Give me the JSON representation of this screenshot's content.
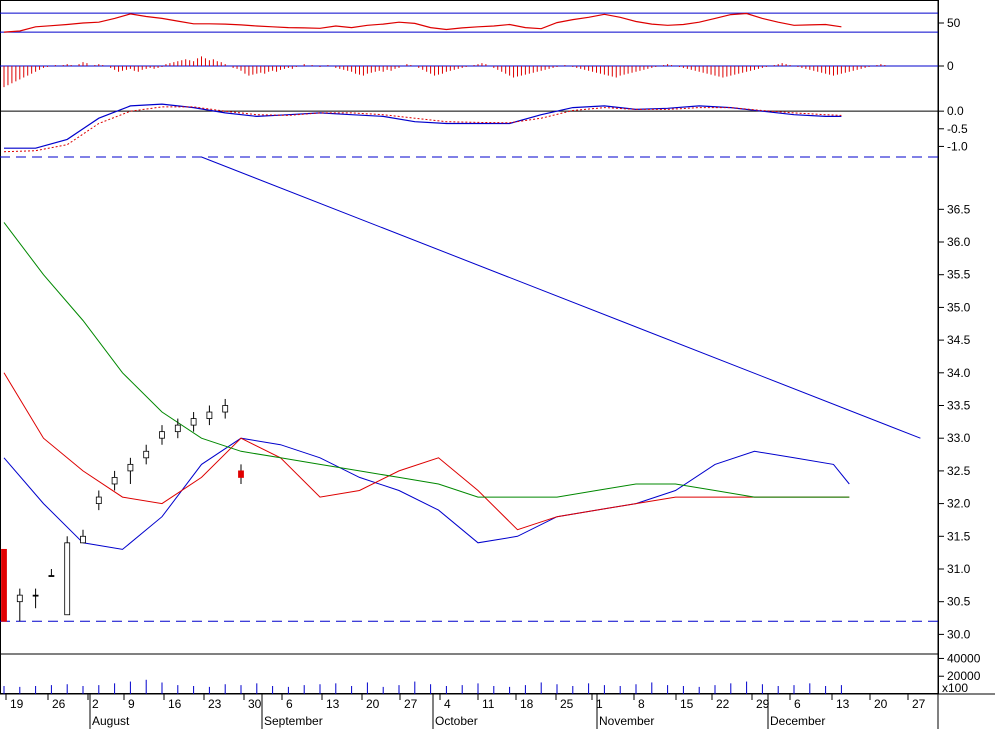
{
  "colors": {
    "background": "#ffffff",
    "frame": "#000000",
    "up_candle": "#ffffff",
    "down_candle": "#e00000",
    "doji_candle": "#000000",
    "ma_short": "#0000cc",
    "ma_mid": "#dd0000",
    "ma_long": "#008800",
    "trendline": "#0000cc",
    "guide": "#0000cc",
    "volume": "#0000cc",
    "histogram": "#dd0000",
    "osc_line": "#dd0000",
    "macd_line": "#0000cc",
    "signal_line": "#dd0000"
  },
  "chart_data": [
    {
      "type": "line",
      "panel": "oscillator",
      "ylim": [
        0,
        100
      ],
      "yticks": [
        50
      ],
      "guides": [
        76,
        26
      ],
      "x": [
        0,
        4,
        8,
        12,
        16,
        20,
        24,
        28,
        32,
        36,
        40,
        44,
        48,
        52,
        56,
        60,
        64,
        68,
        72,
        76,
        80,
        84,
        88,
        92,
        96,
        100,
        104,
        108,
        112,
        116,
        120,
        124,
        128,
        132,
        136,
        140,
        144,
        148,
        152,
        156,
        160,
        164,
        168,
        172,
        176,
        180,
        184,
        188,
        192,
        196,
        200,
        204,
        208,
        212
      ],
      "values": [
        26,
        29,
        40,
        43,
        46,
        50,
        52,
        62,
        74,
        67,
        62,
        55,
        48,
        48,
        47,
        45,
        42,
        40,
        38,
        37,
        36,
        42,
        38,
        44,
        47,
        52,
        49,
        38,
        33,
        37,
        40,
        42,
        46,
        38,
        35,
        51,
        59,
        65,
        73,
        65,
        54,
        47,
        44,
        46,
        52,
        62,
        72,
        75,
        62,
        52,
        44,
        45,
        46,
        40
      ]
    },
    {
      "type": "bar",
      "panel": "histogram",
      "ylim": [
        -0.25,
        0.25
      ],
      "yticks": [
        0
      ],
      "x": [
        0,
        1,
        2,
        3,
        4,
        5,
        6,
        7,
        8,
        9,
        10,
        11,
        12,
        13,
        14,
        15,
        16,
        17,
        18,
        19,
        20,
        21,
        22,
        23,
        24,
        25,
        26,
        27,
        28,
        29,
        30,
        31,
        32,
        33,
        34,
        35,
        36,
        37,
        38,
        39,
        40,
        41,
        42,
        43,
        44,
        45,
        46,
        47,
        48,
        49,
        50,
        51,
        52,
        53,
        54,
        55,
        56,
        57,
        58,
        59,
        60,
        61,
        62,
        63,
        64,
        65,
        66,
        67,
        68,
        69,
        70,
        71,
        72,
        73,
        74,
        75,
        76,
        77,
        78,
        79,
        80,
        81,
        82,
        83,
        84,
        85,
        86,
        87,
        88,
        89,
        90,
        91,
        92,
        93,
        94,
        95,
        96,
        97,
        98,
        99,
        100,
        101,
        102,
        103,
        104,
        105,
        106,
        107,
        108,
        109,
        110,
        111,
        112,
        113,
        114,
        115,
        116,
        117,
        118,
        119,
        120,
        121,
        122,
        123,
        124,
        125,
        126,
        127,
        128,
        129,
        130,
        131,
        132,
        133,
        134,
        135,
        136,
        137,
        138,
        139,
        140,
        141,
        142,
        143,
        144,
        145,
        146,
        147,
        148,
        149,
        150,
        151,
        152,
        153,
        154,
        155,
        156,
        157,
        158,
        159,
        160,
        161,
        162,
        163,
        164,
        165,
        166,
        167,
        168,
        169,
        170,
        171,
        172,
        173,
        174,
        175,
        176,
        177,
        178,
        179,
        180,
        181,
        182,
        183,
        184,
        185,
        186,
        187,
        188,
        189,
        190,
        191,
        192,
        193,
        194,
        195,
        196,
        197,
        198,
        199,
        200,
        201,
        202,
        203,
        204,
        205,
        206,
        207,
        208,
        209,
        210,
        211,
        212,
        213,
        214,
        215,
        216,
        217,
        218,
        219,
        220,
        221,
        222,
        223,
        224
      ],
      "values": [
        -0.22,
        -0.2,
        -0.18,
        -0.16,
        -0.14,
        -0.12,
        -0.1,
        -0.08,
        -0.06,
        -0.04,
        -0.02,
        -0.01,
        0,
        0.01,
        0,
        0.01,
        0.02,
        0.01,
        0,
        0.02,
        0.04,
        0.03,
        0,
        0.01,
        0.02,
        0.01,
        0,
        -0.02,
        -0.04,
        -0.06,
        -0.05,
        -0.04,
        -0.03,
        -0.05,
        -0.06,
        -0.04,
        -0.03,
        -0.02,
        -0.03,
        -0.02,
        -0.01,
        0.02,
        0.03,
        0.04,
        0.05,
        0.06,
        0.07,
        0.06,
        0.05,
        0.08,
        0.1,
        0.08,
        0.06,
        0.07,
        0.05,
        0.04,
        0.02,
        0,
        -0.02,
        -0.03,
        -0.05,
        -0.08,
        -0.1,
        -0.09,
        -0.08,
        -0.07,
        -0.08,
        -0.06,
        -0.05,
        -0.06,
        -0.04,
        -0.03,
        -0.02,
        -0.03,
        -0.01,
        0,
        0.02,
        0,
        0.01,
        0,
        -0.01,
        0,
        0.01,
        0,
        -0.02,
        -0.03,
        -0.04,
        -0.05,
        -0.06,
        -0.08,
        -0.09,
        -0.1,
        -0.08,
        -0.07,
        -0.06,
        -0.05,
        -0.06,
        -0.04,
        -0.05,
        -0.03,
        -0.02,
        0,
        0.02,
        0.01,
        0,
        -0.02,
        -0.04,
        -0.06,
        -0.08,
        -0.1,
        -0.09,
        -0.08,
        -0.06,
        -0.05,
        -0.04,
        -0.03,
        -0.02,
        -0.01,
        0,
        0.01,
        0.02,
        0.03,
        0.02,
        0,
        -0.02,
        -0.04,
        -0.06,
        -0.08,
        -0.1,
        -0.12,
        -0.11,
        -0.1,
        -0.09,
        -0.08,
        -0.07,
        -0.06,
        -0.05,
        -0.04,
        -0.03,
        -0.02,
        -0.01,
        0,
        0.01,
        0,
        -0.01,
        -0.02,
        -0.03,
        -0.04,
        -0.05,
        -0.06,
        -0.07,
        -0.08,
        -0.09,
        -0.1,
        -0.11,
        -0.12,
        -0.1,
        -0.09,
        -0.08,
        -0.07,
        -0.06,
        -0.05,
        -0.04,
        -0.03,
        -0.02,
        -0.01,
        0,
        0.01,
        0.02,
        0.01,
        0,
        -0.01,
        -0.02,
        -0.03,
        -0.04,
        -0.05,
        -0.06,
        -0.07,
        -0.08,
        -0.09,
        -0.1,
        -0.11,
        -0.12,
        -0.11,
        -0.1,
        -0.09,
        -0.08,
        -0.07,
        -0.06,
        -0.05,
        -0.04,
        -0.03,
        -0.02,
        -0.01,
        0,
        0.01,
        0.02,
        0.03,
        0.02,
        0.01,
        0,
        -0.01,
        -0.02,
        -0.03,
        -0.04,
        -0.05,
        -0.06,
        -0.07,
        -0.08,
        -0.09,
        -0.1,
        -0.09,
        -0.08,
        -0.07,
        -0.06,
        -0.05,
        -0.04,
        -0.03,
        -0.02,
        -0.01,
        0,
        0.01,
        0.02,
        0.01,
        0
      ]
    },
    {
      "type": "line",
      "panel": "macd",
      "ylim": [
        -1.3,
        0.6
      ],
      "yticks": [
        0.0,
        -0.5,
        -1.0
      ],
      "ytick_labels": [
        "0.0",
        "-0.5",
        "-1.0"
      ],
      "guides": [
        0.0
      ],
      "x": [
        0,
        8,
        16,
        24,
        32,
        40,
        48,
        56,
        64,
        72,
        80,
        88,
        96,
        104,
        112,
        120,
        128,
        136,
        144,
        152,
        160,
        168,
        176,
        184,
        192,
        200,
        208,
        212
      ],
      "series": [
        {
          "values": [
            -1.05,
            -1.05,
            -0.8,
            -0.2,
            0.15,
            0.2,
            0.1,
            -0.05,
            -0.15,
            -0.1,
            -0.05,
            -0.1,
            -0.15,
            -0.3,
            -0.35,
            -0.35,
            -0.35,
            -0.1,
            0.1,
            0.15,
            0.05,
            0.08,
            0.15,
            0.1,
            0.0,
            -0.1,
            -0.15,
            -0.15
          ]
        },
        {
          "values": [
            -1.15,
            -1.12,
            -0.95,
            -0.35,
            0.0,
            0.12,
            0.12,
            0.0,
            -0.1,
            -0.12,
            -0.05,
            -0.05,
            -0.1,
            -0.2,
            -0.3,
            -0.32,
            -0.33,
            -0.2,
            0.02,
            0.1,
            0.05,
            0.05,
            0.1,
            0.1,
            0.02,
            -0.05,
            -0.1,
            -0.12
          ]
        }
      ]
    },
    {
      "type": "line",
      "panel": "price",
      "ylim": [
        29.7,
        37.3
      ],
      "yticks": [
        30.0,
        30.5,
        31.0,
        31.5,
        32.0,
        32.5,
        33.0,
        33.5,
        34.0,
        34.5,
        35.0,
        35.5,
        36.0,
        36.5
      ],
      "ytick_labels": [
        "30.0",
        "30.5",
        "31.0",
        "31.5",
        "32.0",
        "32.5",
        "33.0",
        "33.5",
        "34.0",
        "34.5",
        "35.0",
        "35.5",
        "36.0",
        "36.5"
      ],
      "guides": [
        30.2
      ],
      "x": [
        0,
        10,
        20,
        30,
        40,
        50,
        60,
        70,
        80,
        90,
        100,
        110,
        120,
        130,
        140,
        150,
        160,
        170,
        180,
        190,
        200,
        210,
        214
      ],
      "series": [
        {
          "values": [
            32.7,
            32.0,
            31.4,
            31.3,
            31.8,
            32.6,
            33.0,
            32.9,
            32.7,
            32.4,
            32.2,
            31.9,
            31.4,
            31.5,
            31.8,
            31.9,
            32.0,
            32.2,
            32.6,
            32.8,
            32.7,
            32.6,
            32.3
          ]
        },
        {
          "values": [
            34.0,
            33.0,
            32.5,
            32.1,
            32.0,
            32.4,
            33.0,
            32.7,
            32.1,
            32.2,
            32.5,
            32.7,
            32.2,
            31.6,
            31.8,
            31.9,
            32.0,
            32.1,
            32.1,
            32.1,
            32.1,
            32.1,
            32.1
          ]
        },
        {
          "values": [
            36.3,
            35.5,
            34.8,
            34.0,
            33.4,
            33.0,
            32.8,
            32.7,
            32.6,
            32.5,
            32.4,
            32.3,
            32.1,
            32.1,
            32.1,
            32.2,
            32.3,
            32.3,
            32.2,
            32.1,
            32.1,
            32.1,
            32.1
          ]
        }
      ],
      "trendline": {
        "x": [
          50,
          232
        ],
        "values": [
          37.3,
          33.0
        ]
      },
      "candles": [
        {
          "x": 0,
          "o": 31.3,
          "h": 31.3,
          "l": 30.2,
          "c": 30.2
        },
        {
          "x": 4,
          "o": 30.5,
          "h": 30.7,
          "l": 30.2,
          "c": 30.6
        },
        {
          "x": 8,
          "o": 30.6,
          "h": 30.7,
          "l": 30.4,
          "c": 30.6
        },
        {
          "x": 12,
          "o": 30.9,
          "h": 31.0,
          "l": 30.9,
          "c": 30.9
        },
        {
          "x": 16,
          "o": 30.3,
          "h": 31.5,
          "l": 30.3,
          "c": 31.4
        },
        {
          "x": 20,
          "o": 31.4,
          "h": 31.6,
          "l": 31.4,
          "c": 31.5
        },
        {
          "x": 24,
          "o": 32.0,
          "h": 32.2,
          "l": 31.9,
          "c": 32.1
        },
        {
          "x": 28,
          "o": 32.3,
          "h": 32.5,
          "l": 32.2,
          "c": 32.4
        },
        {
          "x": 32,
          "o": 32.5,
          "h": 32.7,
          "l": 32.3,
          "c": 32.6
        },
        {
          "x": 36,
          "o": 32.7,
          "h": 32.9,
          "l": 32.6,
          "c": 32.8
        },
        {
          "x": 40,
          "o": 33.0,
          "h": 33.2,
          "l": 32.9,
          "c": 33.1
        },
        {
          "x": 44,
          "o": 33.1,
          "h": 33.3,
          "l": 33.0,
          "c": 33.2
        },
        {
          "x": 48,
          "o": 33.2,
          "h": 33.4,
          "l": 33.1,
          "c": 33.3
        },
        {
          "x": 52,
          "o": 33.3,
          "h": 33.5,
          "l": 33.2,
          "c": 33.4
        },
        {
          "x": 56,
          "o": 33.4,
          "h": 33.6,
          "l": 33.3,
          "c": 33.5
        },
        {
          "x": 60,
          "o": 32.5,
          "h": 32.6,
          "l": 32.3,
          "c": 32.4
        }
      ]
    },
    {
      "type": "bar",
      "panel": "volume",
      "ylim": [
        0,
        45000
      ],
      "yticks": [
        40000,
        20000
      ],
      "ytick_labels": [
        "40000",
        "20000"
      ],
      "axis_note": "x100",
      "x": [
        0,
        4,
        8,
        12,
        16,
        20,
        24,
        28,
        32,
        36,
        40,
        44,
        48,
        52,
        56,
        60,
        64,
        68,
        72,
        76,
        80,
        84,
        88,
        92,
        96,
        100,
        104,
        108,
        112,
        116,
        120,
        124,
        128,
        132,
        136,
        140,
        144,
        148,
        152,
        156,
        160,
        164,
        168,
        172,
        176,
        180,
        184,
        188,
        192,
        196,
        200,
        204,
        208,
        212
      ],
      "values": [
        9000,
        8000,
        9000,
        10000,
        11000,
        9000,
        10000,
        12000,
        14000,
        16000,
        13000,
        10000,
        9000,
        8000,
        11000,
        10000,
        12000,
        9000,
        8000,
        10000,
        11000,
        12000,
        9000,
        13000,
        8000,
        10000,
        14000,
        11000,
        9000,
        10000,
        12000,
        9000,
        8000,
        10000,
        13000,
        11000,
        9000,
        12000,
        10000,
        9000,
        11000,
        13000,
        10000,
        9000,
        8000,
        10000,
        12000,
        14000,
        11000,
        9000,
        10000,
        12000,
        9000,
        10000
      ]
    },
    {
      "type": "table",
      "panel": "date-axis",
      "day_labels": [
        "19",
        "26",
        "2",
        "9",
        "16",
        "23",
        "30",
        "6",
        "13",
        "20",
        "27",
        "4",
        "11",
        "18",
        "25",
        "1",
        "8",
        "15",
        "22",
        "29",
        "6",
        "13",
        "20",
        "27"
      ],
      "month_labels": [
        "August",
        "September",
        "October",
        "November",
        "December"
      ]
    }
  ]
}
